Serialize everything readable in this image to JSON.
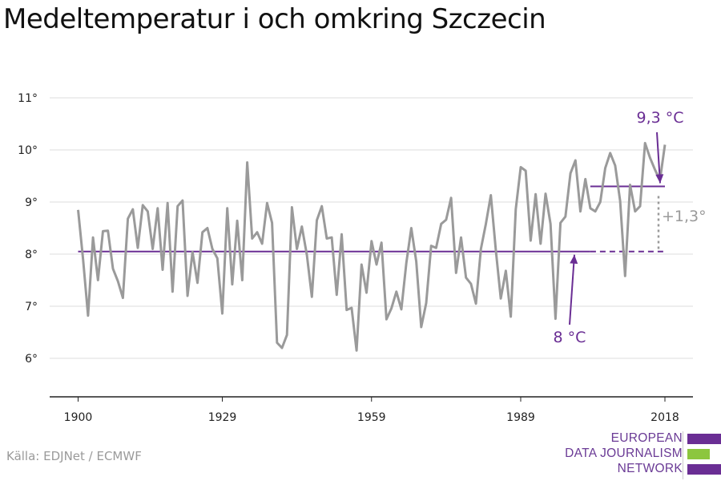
{
  "title": "Medeltemperatur i och omkring Szczecin",
  "source": "Källa: EDJNet / ECMWF",
  "logo": {
    "lines": [
      "EUROPEAN",
      "DATA JOURNALISM",
      "NETWORK"
    ],
    "colors": {
      "purple": "#6a2e94",
      "green": "#8cc63f"
    }
  },
  "colors": {
    "series": "#9a9a9a",
    "reference": "#6a2e94",
    "grid": "#dddddd",
    "axis": "#222222",
    "diff": "#9a9a9a"
  },
  "chart_data": {
    "type": "line",
    "title": "Medeltemperatur i och omkring Szczecin",
    "xlabel": "",
    "ylabel": "",
    "xlim": [
      1900,
      2018
    ],
    "ylim": [
      5.2,
      11.3
    ],
    "grid": true,
    "x_ticks": [
      1900,
      1929,
      1959,
      1989,
      2018
    ],
    "x_tick_labels": [
      "1900",
      "1929",
      "1959",
      "1989",
      "2018"
    ],
    "y_ticks": [
      6,
      7,
      8,
      9,
      10,
      11
    ],
    "y_tick_labels": [
      "6°",
      "7°",
      "8°",
      "9°",
      "10°",
      "11°"
    ],
    "series": [
      {
        "x_start": 1900,
        "x_step": 1,
        "values": [
          8.85,
          7.9,
          6.82,
          8.32,
          7.5,
          8.44,
          8.45,
          7.72,
          7.48,
          7.16,
          8.68,
          8.86,
          8.12,
          8.94,
          8.82,
          8.1,
          8.88,
          7.7,
          8.98,
          7.28,
          8.92,
          9.03,
          7.2,
          8.04,
          7.45,
          8.42,
          8.5,
          8.1,
          7.92,
          6.86,
          8.88,
          7.42,
          8.64,
          7.5,
          9.76,
          8.3,
          8.42,
          8.2,
          8.98,
          8.6,
          6.3,
          6.2,
          6.45,
          8.9,
          8.1,
          8.53,
          7.98,
          7.18,
          8.65,
          8.92,
          8.3,
          8.32,
          7.22,
          8.38,
          6.93,
          6.97,
          6.15,
          7.8,
          7.26,
          8.25,
          7.8,
          8.22,
          6.75,
          6.96,
          7.28,
          6.94,
          7.83,
          8.5,
          7.86,
          6.6,
          7.06,
          8.16,
          8.12,
          8.58,
          8.66,
          9.08,
          7.64,
          8.32,
          7.55,
          7.43,
          7.05,
          8.1,
          8.58,
          9.13,
          8.08,
          7.15,
          7.68,
          6.8,
          8.86,
          9.67,
          9.6,
          8.26,
          9.15,
          8.2,
          9.16,
          8.58,
          6.76,
          8.6,
          8.72,
          9.55,
          9.8,
          8.82,
          9.44,
          8.88,
          8.82,
          9.0,
          9.65,
          9.94,
          9.7,
          9.02,
          7.58,
          9.33,
          8.82,
          8.92,
          10.13,
          9.85,
          9.62,
          9.42,
          10.1
        ]
      }
    ],
    "reference_lines": [
      {
        "x_from": 1900,
        "x_to": 2018,
        "y": 8.05,
        "solid_to": 2003
      },
      {
        "x_from": 2003,
        "x_to": 2018,
        "y": 9.3
      }
    ],
    "annotations": {
      "recent_label": "9,3 °C",
      "baseline_label": "8 °C",
      "diff_label": "+1,3°"
    }
  }
}
